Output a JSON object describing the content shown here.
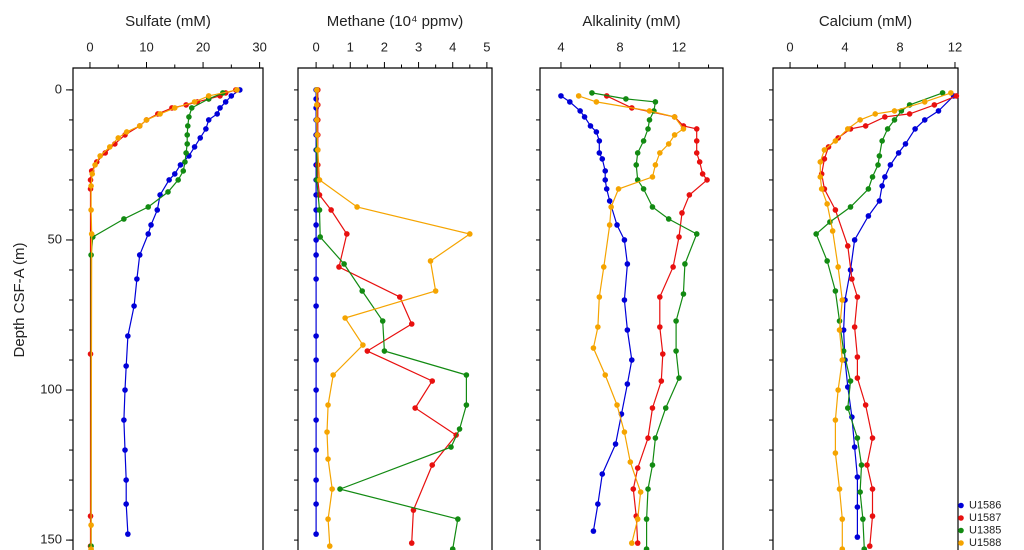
{
  "chart_data": [
    {
      "type": "line",
      "title": "Sulfate (mM)",
      "ylabel": "Depth CSF-A (m)",
      "legend": "lower right",
      "xlim": [
        -3.0,
        30.6
      ],
      "xticks": [
        0,
        10,
        20,
        30
      ],
      "xminorticks": [
        5,
        15,
        25
      ],
      "ylim": [
        -7.3,
        153.3
      ],
      "yticks": [
        0,
        50,
        100,
        150
      ],
      "yminorticks": [
        0,
        10,
        20,
        30,
        40,
        50,
        60,
        70,
        80,
        90,
        100,
        110,
        120,
        130,
        140,
        150
      ],
      "series": [
        {
          "name": "U1586",
          "color": "#0000d8",
          "depth": [
            0,
            2,
            4,
            6,
            8,
            10,
            13,
            16,
            19,
            22,
            25,
            28,
            30,
            35,
            40,
            45,
            48,
            55,
            63,
            72,
            82,
            92,
            100,
            110,
            120,
            130,
            138,
            148
          ],
          "values": [
            26.5,
            25,
            24,
            23,
            22.5,
            21,
            20.5,
            19.5,
            18.5,
            17.5,
            16,
            15,
            14,
            12.4,
            11.9,
            10.8,
            10.3,
            8.8,
            8.3,
            7.8,
            6.7,
            6.4,
            6.2,
            6,
            6.2,
            6.4,
            6.4,
            6.7
          ]
        },
        {
          "name": "U1587",
          "color": "#e8100f",
          "depth": [
            0,
            1,
            2,
            3,
            4,
            5,
            6,
            8,
            10,
            12,
            15,
            18,
            21,
            24,
            27,
            30,
            33,
            88,
            142,
            152
          ],
          "values": [
            25.8,
            24,
            23,
            21,
            19,
            17,
            14.5,
            12,
            10,
            8.8,
            6.2,
            4.4,
            2.7,
            1.2,
            0.3,
            0.1,
            0.1,
            0.1,
            0.1,
            0.1
          ]
        },
        {
          "name": "U1385",
          "color": "#128a12",
          "depth": [
            1,
            3,
            6,
            9,
            12,
            15,
            18,
            21,
            24,
            27,
            30,
            34,
            39,
            43,
            49,
            55,
            152
          ],
          "values": [
            23.5,
            21,
            18,
            17.5,
            17.3,
            17.2,
            17.2,
            17,
            16.8,
            16.5,
            15.6,
            13.8,
            10.3,
            6,
            0.5,
            0.2,
            0.2
          ]
        },
        {
          "name": "U1588",
          "color": "#f5a400",
          "depth": [
            0,
            2,
            4,
            6,
            8,
            10,
            12,
            14,
            16,
            19,
            22,
            25,
            28,
            32,
            40,
            48,
            145,
            153
          ],
          "values": [
            26,
            21,
            18.5,
            15,
            12.4,
            10,
            8.8,
            6.5,
            5,
            3.5,
            1.8,
            0.9,
            0.4,
            0.2,
            0.2,
            0.3,
            0.2,
            0.2
          ]
        }
      ]
    },
    {
      "type": "line",
      "title": "Methane (10⁴ ppmv)",
      "xlim": [
        -0.53,
        5.15
      ],
      "xticks": [
        0,
        1,
        2,
        3,
        4,
        5
      ],
      "xminorticks": [
        0.5,
        1.5,
        2.5,
        3.5,
        4.5
      ],
      "ylim": [
        -7.3,
        153.3
      ],
      "yminorticks": [
        0,
        10,
        20,
        30,
        40,
        50,
        60,
        70,
        80,
        90,
        100,
        110,
        120,
        130,
        140,
        150
      ],
      "series": [
        {
          "name": "U1586",
          "color": "#0000d8",
          "depth": [
            0,
            3,
            6,
            10,
            15,
            20,
            25,
            30,
            35,
            40,
            45,
            50,
            55,
            63,
            72,
            82,
            90,
            100,
            110,
            120,
            130,
            138,
            148
          ],
          "values": [
            0,
            0,
            0,
            0,
            0,
            0,
            0,
            0,
            0,
            0,
            0,
            0,
            0,
            0,
            0,
            0,
            0,
            0,
            0,
            0,
            0,
            0,
            0
          ]
        },
        {
          "name": "U1587",
          "color": "#e8100f",
          "depth": [
            0,
            5,
            10,
            15,
            20,
            25,
            30,
            35,
            40,
            48,
            59,
            69,
            78,
            87,
            97,
            106,
            115,
            125,
            140,
            151
          ],
          "values": [
            0.05,
            0.05,
            0.05,
            0.05,
            0.05,
            0.05,
            0.05,
            0.1,
            0.44,
            0.9,
            0.67,
            2.45,
            2.8,
            1.5,
            3.4,
            2.9,
            4.1,
            3.4,
            2.85,
            2.8
          ]
        },
        {
          "name": "U1385",
          "color": "#128a12",
          "depth": [
            0,
            10,
            20,
            30,
            40,
            49,
            58,
            67,
            77,
            87,
            95,
            105,
            113,
            119,
            133,
            143,
            153
          ],
          "values": [
            0.02,
            0.02,
            0.02,
            0.02,
            0.1,
            0.12,
            0.82,
            1.35,
            1.95,
            2.0,
            4.4,
            4.4,
            4.2,
            3.95,
            0.7,
            4.15,
            4.0
          ]
        },
        {
          "name": "U1588",
          "color": "#f5a400",
          "depth": [
            0,
            5,
            10,
            15,
            20,
            30,
            39,
            48,
            57,
            67,
            76,
            85,
            95,
            105,
            114,
            123,
            133,
            143,
            152
          ],
          "values": [
            0.02,
            0.02,
            0.02,
            0.03,
            0.05,
            0.1,
            1.2,
            4.5,
            3.35,
            3.5,
            0.85,
            1.37,
            0.5,
            0.35,
            0.32,
            0.35,
            0.47,
            0.35,
            0.4
          ]
        }
      ]
    },
    {
      "type": "line",
      "title": "Alkalinity (mM)",
      "xlim": [
        2.58,
        14.98
      ],
      "xticks": [
        4,
        8,
        12
      ],
      "xminorticks": [
        6,
        10,
        14
      ],
      "ylim": [
        -7.3,
        153.3
      ],
      "yminorticks": [
        0,
        10,
        20,
        30,
        40,
        50,
        60,
        70,
        80,
        90,
        100,
        110,
        120,
        130,
        140,
        150
      ],
      "series": [
        {
          "name": "U1586",
          "color": "#0000d8",
          "depth": [
            2,
            4,
            7,
            9,
            12,
            14,
            17,
            21,
            23,
            27,
            30,
            33,
            37,
            45,
            50,
            58,
            70,
            80,
            90,
            98,
            108,
            118,
            128,
            138,
            147
          ],
          "values": [
            4.0,
            4.6,
            5.3,
            5.6,
            6.0,
            6.4,
            6.6,
            6.6,
            6.8,
            7.0,
            7.0,
            7.1,
            7.3,
            7.8,
            8.3,
            8.5,
            8.3,
            8.5,
            8.8,
            8.5,
            8.1,
            7.7,
            6.8,
            6.5,
            6.2
          ]
        },
        {
          "name": "U1587",
          "color": "#e8100f",
          "depth": [
            2,
            6,
            9,
            12,
            13,
            17,
            21,
            24,
            28,
            30,
            35,
            41,
            49,
            59,
            69,
            79,
            88,
            97,
            106,
            116,
            126,
            133,
            142,
            151
          ],
          "values": [
            7.1,
            8.8,
            11.7,
            12.3,
            13.2,
            13.2,
            13.2,
            13.4,
            13.6,
            13.9,
            12.7,
            12.2,
            12.0,
            11.6,
            10.7,
            10.7,
            10.9,
            10.8,
            10.2,
            9.9,
            9.2,
            8.9,
            9.1,
            9.2
          ]
        },
        {
          "name": "U1385",
          "color": "#128a12",
          "depth": [
            1,
            3,
            4,
            7,
            10,
            13,
            17,
            21,
            25,
            30,
            33,
            39,
            43,
            48,
            58,
            68,
            77,
            87,
            96,
            106,
            116,
            125,
            133,
            143,
            153
          ],
          "values": [
            6.1,
            8.4,
            10.4,
            10.3,
            10.0,
            9.9,
            9.6,
            9.2,
            9.1,
            9.2,
            9.6,
            10.2,
            11.3,
            13.2,
            12.4,
            12.3,
            11.8,
            11.8,
            12.0,
            11.1,
            10.4,
            10.2,
            9.9,
            9.8,
            9.8
          ]
        },
        {
          "name": "U1588",
          "color": "#f5a400",
          "depth": [
            2,
            4,
            7,
            9,
            13,
            15,
            18,
            21,
            25,
            29,
            33,
            39,
            45,
            59,
            69,
            79,
            86,
            95,
            105,
            114,
            124,
            134,
            143,
            151
          ],
          "values": [
            5.2,
            6.4,
            10.0,
            11.7,
            12.3,
            11.7,
            11.3,
            10.7,
            10.4,
            10.2,
            7.9,
            7.4,
            7.3,
            6.9,
            6.6,
            6.5,
            6.2,
            7.0,
            7.8,
            8.3,
            8.7,
            9.4,
            9.2,
            8.8
          ]
        }
      ]
    },
    {
      "type": "line",
      "title": "Calcium (mM)",
      "xlim": [
        -1.24,
        12.22
      ],
      "xticks": [
        0,
        4,
        8,
        12
      ],
      "xminorticks": [
        2,
        6,
        10
      ],
      "ylim": [
        -7.3,
        153.3
      ],
      "yminorticks": [
        0,
        10,
        20,
        30,
        40,
        50,
        60,
        70,
        80,
        90,
        100,
        110,
        120,
        130,
        140,
        150
      ],
      "series": [
        {
          "name": "U1586",
          "color": "#0000d8",
          "depth": [
            2,
            7,
            10,
            13,
            18,
            21,
            25,
            29,
            32,
            37,
            42,
            50,
            60,
            70,
            80,
            90,
            99,
            109,
            119,
            129,
            139,
            149
          ],
          "values": [
            11.9,
            10.8,
            9.8,
            9.1,
            8.4,
            7.9,
            7.3,
            6.9,
            6.7,
            6.5,
            5.7,
            4.7,
            4.4,
            4.0,
            3.9,
            4.0,
            4.2,
            4.5,
            4.7,
            4.9,
            4.9,
            4.9
          ]
        },
        {
          "name": "U1587",
          "color": "#e8100f",
          "depth": [
            2,
            5,
            8,
            9,
            12,
            13,
            16,
            19,
            23,
            28,
            33,
            40,
            52,
            63,
            69,
            79,
            89,
            96,
            105,
            116,
            125,
            133,
            142,
            152
          ],
          "values": [
            12.1,
            10.5,
            8.7,
            6.9,
            5.5,
            4.4,
            3.5,
            2.8,
            2.5,
            2.3,
            2.5,
            3.3,
            4.2,
            4.5,
            4.9,
            4.7,
            4.9,
            4.9,
            5.5,
            6.0,
            5.6,
            6.0,
            6.0,
            5.8
          ]
        },
        {
          "name": "U1385",
          "color": "#128a12",
          "depth": [
            1,
            5,
            7,
            10,
            13,
            17,
            22,
            25,
            29,
            33,
            39,
            44,
            48,
            57,
            67,
            77,
            87,
            97,
            106,
            116,
            125,
            134,
            143,
            153
          ],
          "values": [
            11.1,
            8.7,
            8.1,
            7.6,
            7.1,
            6.7,
            6.5,
            6.4,
            6.0,
            5.7,
            4.4,
            2.9,
            1.9,
            2.7,
            3.3,
            3.6,
            3.9,
            4.4,
            4.2,
            4.9,
            5.2,
            5.1,
            5.3,
            5.4
          ]
        },
        {
          "name": "U1588",
          "color": "#f5a400",
          "depth": [
            1,
            4,
            7,
            8,
            10,
            13,
            17,
            20,
            24,
            29,
            33,
            38,
            47,
            59,
            70,
            80,
            90,
            100,
            110,
            121,
            133,
            143,
            153
          ],
          "values": [
            11.7,
            9.8,
            7.6,
            6.2,
            5.1,
            4.2,
            3.3,
            2.5,
            2.2,
            2.2,
            2.3,
            2.7,
            3.1,
            3.5,
            3.8,
            3.6,
            3.8,
            3.5,
            3.3,
            3.3,
            3.6,
            3.8,
            3.8
          ]
        }
      ]
    }
  ]
}
